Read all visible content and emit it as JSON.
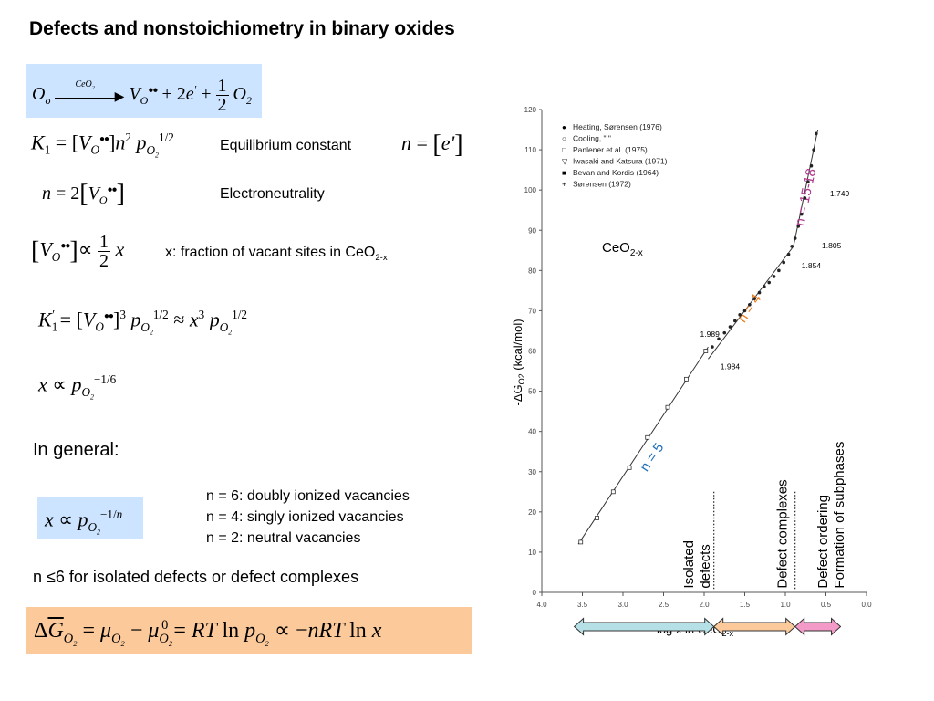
{
  "title": "Defects and nonstoichiometry in binary oxides",
  "labels": {
    "equilibrium": "Equilibrium constant",
    "electroneutrality": "Electroneutrality",
    "fraction": "x: fraction of vacant sites in CeO",
    "fraction_sub": "2-x",
    "in_general": "In general:",
    "n6": "n = 6: doubly ionized vacancies",
    "n4": "n = 4: singly ionized vacancies",
    "n2": "n = 2: neutral vacancies",
    "isolated_note": "n ≤6 for isolated defects or defect complexes"
  },
  "equations": {
    "eq1_over": "CeO",
    "eq1_half_num": "1",
    "eq1_half_den": "2"
  },
  "chart_data": {
    "type": "scatter",
    "xlabel": "- log x in CeO",
    "xlabel_sub": "2-x",
    "ylabel_pre": "-ΔG",
    "ylabel_sub": "O2",
    "ylabel_post": " (kcal/mol)",
    "xlim": [
      4.0,
      0.0
    ],
    "ylim": [
      0,
      120
    ],
    "x_ticks": [
      "4.0",
      "3.5",
      "3.0",
      "2.5",
      "2.0",
      "1.5",
      "1.0",
      "0.5",
      "0.0"
    ],
    "y_ticks": [
      "0",
      "10",
      "20",
      "30",
      "40",
      "50",
      "60",
      "70",
      "80",
      "90",
      "100",
      "110",
      "120"
    ],
    "compound_label": "CeO",
    "compound_sub": "2-x",
    "legend": [
      {
        "marker": "●",
        "text": "Heating, Sørensen (1976)"
      },
      {
        "marker": "○",
        "text": "Cooling,        \"        \""
      },
      {
        "marker": "□",
        "text": "Panlener et al. (1975)"
      },
      {
        "marker": "▽",
        "text": "Iwasaki and Katsura (1971)"
      },
      {
        "marker": "■",
        "text": "Bevan and Kordis (1964)"
      },
      {
        "marker": "+",
        "text": "Sørensen (1972)"
      }
    ],
    "series": [
      {
        "name": "Panlener et al. (1975)",
        "marker": "square",
        "x": [
          3.52,
          3.32,
          3.12,
          2.92,
          2.7,
          2.45,
          2.22,
          1.98
        ],
        "y": [
          12.5,
          18.5,
          25,
          31,
          38.5,
          46,
          53,
          60
        ]
      },
      {
        "name": "Heating, Sørensen (1976)",
        "marker": "dot",
        "x": [
          1.9,
          1.82,
          1.75,
          1.68,
          1.62,
          1.56,
          1.5,
          1.44,
          1.38,
          1.32,
          1.26,
          1.2,
          1.14,
          1.08,
          1.02,
          0.96,
          0.92,
          0.88,
          0.84,
          0.8,
          0.76,
          0.72,
          0.68,
          0.65,
          0.62
        ],
        "y": [
          61,
          63,
          64.5,
          66,
          67.5,
          69,
          70,
          71.5,
          73,
          74.5,
          76,
          77,
          78.5,
          80,
          82,
          84,
          86,
          88,
          91,
          94,
          98,
          102,
          106,
          110,
          114
        ]
      }
    ],
    "fit_lines": [
      {
        "label": "n = 5",
        "x": [
          3.55,
          1.95
        ],
        "y": [
          12,
          61
        ]
      },
      {
        "label": "n = 4",
        "x": [
          1.95,
          0.9
        ],
        "y": [
          58,
          86
        ]
      },
      {
        "label": "n = 15-18",
        "x": [
          0.9,
          0.6
        ],
        "y": [
          86,
          115
        ]
      }
    ],
    "annotations": [
      {
        "text": "1.989",
        "x": 2.05,
        "y": 63.5
      },
      {
        "text": "1.984",
        "x": 1.8,
        "y": 55.5
      },
      {
        "text": "1.854",
        "x": 0.8,
        "y": 80.5
      },
      {
        "text": "1.805",
        "x": 0.55,
        "y": 85.5
      },
      {
        "text": "1.749",
        "x": 0.45,
        "y": 98.5
      }
    ],
    "dividers": [
      1.88,
      0.88
    ],
    "regions": [
      {
        "label": "Isolated\ndefects",
        "x1": 3.6,
        "x2": 1.88,
        "color": "#b5e1e6"
      },
      {
        "label": "Defect complexes",
        "x1": 1.88,
        "x2": 0.88,
        "color": "#fbc99a"
      },
      {
        "label": "Defect ordering\nFormation of subphases",
        "x1": 0.88,
        "x2": 0.32,
        "color": "#f49ac8"
      }
    ],
    "fit_label_colors": {
      "n = 5": "#1f6fb8",
      "n = 4": "#e87b1c",
      "n = 15-18": "#b0388e"
    }
  }
}
